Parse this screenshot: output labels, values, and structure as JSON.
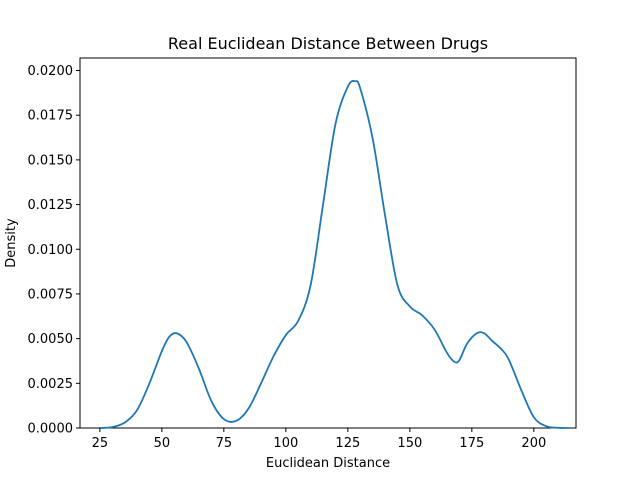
{
  "chart_data": {
    "type": "line",
    "title": "Real Euclidean Distance Between Drugs",
    "xlabel": "Euclidean Distance",
    "ylabel": "Density",
    "xlim": [
      17,
      217
    ],
    "ylim": [
      0,
      0.0207
    ],
    "xticks": [
      25,
      50,
      75,
      100,
      125,
      150,
      175,
      200
    ],
    "yticks": [
      0.0,
      0.0025,
      0.005,
      0.0075,
      0.01,
      0.0125,
      0.015,
      0.0175,
      0.02
    ],
    "xtick_labels": [
      "25",
      "50",
      "75",
      "100",
      "125",
      "150",
      "175",
      "200"
    ],
    "ytick_labels": [
      "0.0000",
      "0.0025",
      "0.0050",
      "0.0075",
      "0.0100",
      "0.0125",
      "0.0150",
      "0.0175",
      "0.0200"
    ],
    "grid": false,
    "line_color": "#1f77b4",
    "series": [
      {
        "x": [
          25,
          30,
          35,
          40,
          45,
          50,
          53,
          56,
          60,
          65,
          70,
          75,
          80,
          85,
          90,
          95,
          100,
          105,
          110,
          115,
          120,
          125,
          128,
          130,
          135,
          140,
          145,
          150,
          155,
          160,
          165,
          168,
          170,
          173,
          177,
          180,
          183,
          187,
          190,
          195,
          200,
          205,
          210,
          214
        ],
        "y": [
          0.0,
          5e-05,
          0.0003,
          0.001,
          0.0025,
          0.0043,
          0.0051,
          0.0053,
          0.0048,
          0.0033,
          0.0015,
          0.0005,
          0.0004,
          0.0011,
          0.0025,
          0.004,
          0.0052,
          0.006,
          0.008,
          0.0125,
          0.017,
          0.0191,
          0.0194,
          0.019,
          0.0162,
          0.0119,
          0.008,
          0.0068,
          0.0063,
          0.0055,
          0.0042,
          0.0037,
          0.0038,
          0.0047,
          0.0053,
          0.0053,
          0.0049,
          0.0044,
          0.0038,
          0.0021,
          0.0006,
          0.0001,
          1e-05,
          0.0
        ]
      }
    ]
  }
}
